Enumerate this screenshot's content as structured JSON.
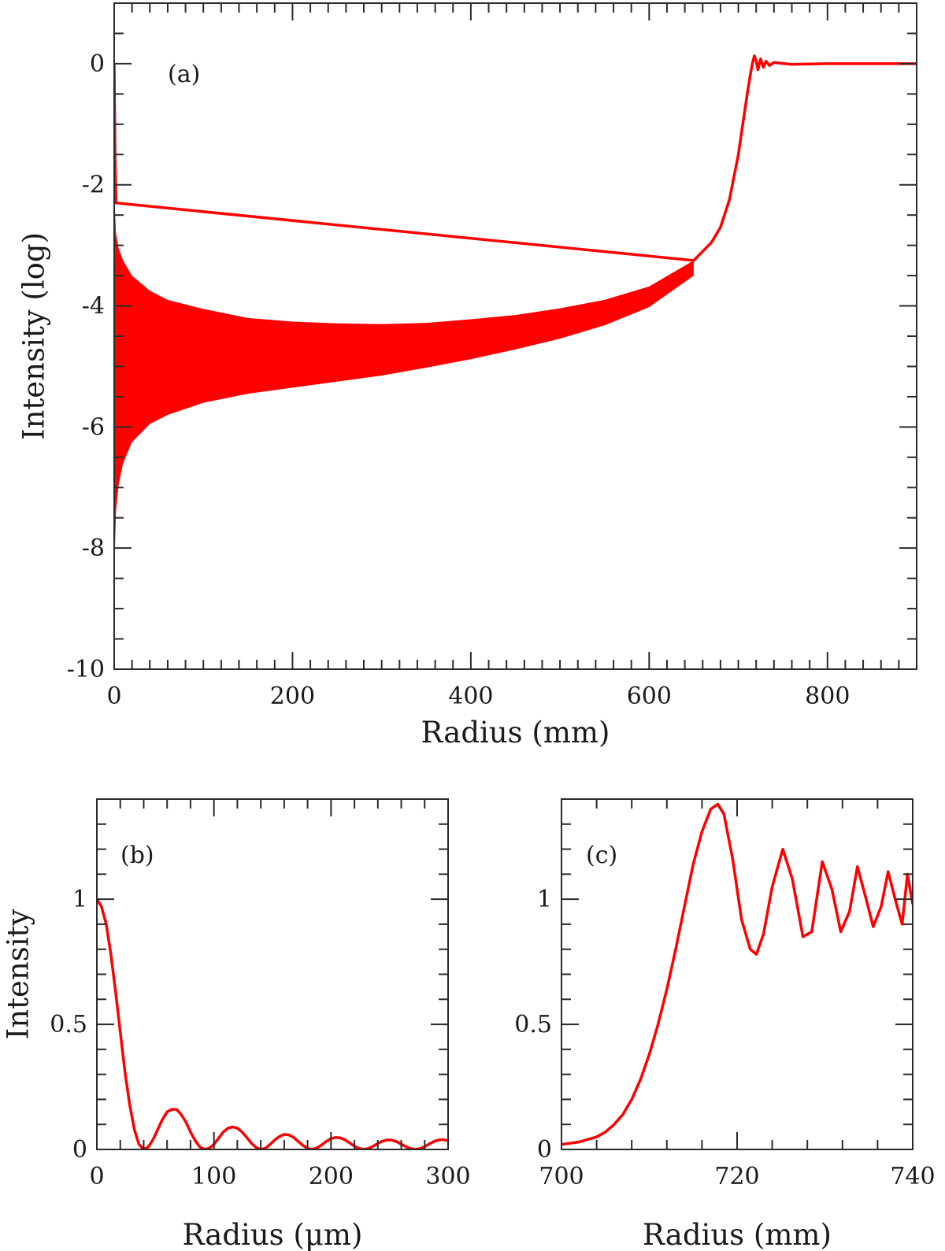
{
  "chart_data": [
    {
      "id": "a",
      "type": "line",
      "panel_label": "(a)",
      "xlabel": "Radius (mm)",
      "ylabel": "Intensity (log)",
      "xlim": [
        0,
        900
      ],
      "ylim": [
        -10,
        1
      ],
      "xticks": [
        0,
        200,
        400,
        600,
        800
      ],
      "yticks": [
        -10,
        -8,
        -6,
        -4,
        -2,
        0
      ],
      "xtick_labels": [
        "0",
        "200",
        "400",
        "600",
        "800"
      ],
      "ytick_labels": [
        "-10",
        "-8",
        "-6",
        "-4",
        "-2",
        "0"
      ],
      "series": [
        {
          "color": "#ff0000",
          "band_upper": {
            "x": [
              0.5,
              2,
              5,
              10,
              20,
              40,
              60,
              100,
              150,
              200,
              250,
              300,
              350,
              400,
              450,
              500,
              550,
              600,
              650
            ],
            "y": [
              -2.3,
              -2.8,
              -3.05,
              -3.25,
              -3.5,
              -3.75,
              -3.9,
              -4.05,
              -4.2,
              -4.26,
              -4.29,
              -4.3,
              -4.28,
              -4.22,
              -4.15,
              -4.04,
              -3.9,
              -3.68,
              -3.25
            ]
          },
          "band_lower": {
            "x": [
              0.5,
              2,
              5,
              10,
              20,
              40,
              60,
              100,
              150,
              200,
              250,
              300,
              350,
              400,
              450,
              500,
              550,
              600,
              650
            ],
            "y": [
              -8.2,
              -7.4,
              -6.95,
              -6.6,
              -6.25,
              -5.95,
              -5.8,
              -5.6,
              -5.45,
              -5.35,
              -5.25,
              -5.15,
              -5.02,
              -4.88,
              -4.72,
              -4.54,
              -4.32,
              -4.02,
              -3.5
            ]
          },
          "line": {
            "x": [
              0,
              1,
              2,
              650,
              670,
              680,
              690,
              700,
              705,
              710,
              713,
              716,
              718,
              720,
              722,
              725,
              728,
              731,
              735,
              740,
              760,
              800,
              850,
              900
            ],
            "y": [
              0,
              -1.5,
              -2.3,
              -3.25,
              -2.95,
              -2.7,
              -2.25,
              -1.5,
              -1.0,
              -0.5,
              -0.22,
              0.02,
              0.13,
              0.05,
              -0.1,
              0.08,
              -0.06,
              0.04,
              -0.03,
              0.02,
              -0.01,
              0.0,
              0.0,
              0.0
            ]
          }
        }
      ]
    },
    {
      "id": "b",
      "type": "line",
      "panel_label": "(b)",
      "xlabel": "Radius (μm)",
      "ylabel": "Intensity",
      "xlim": [
        0,
        300
      ],
      "ylim": [
        0,
        1.4
      ],
      "xticks": [
        0,
        100,
        200,
        300
      ],
      "yticks": [
        0,
        0.5,
        1
      ],
      "xtick_labels": [
        "0",
        "100",
        "200",
        "300"
      ],
      "ytick_labels": [
        "0",
        "0.5",
        "1"
      ],
      "series": [
        {
          "color": "#ff0000",
          "x": [
            0,
            4,
            8,
            12,
            16,
            20,
            24,
            28,
            32,
            36,
            40,
            44,
            48,
            52,
            56,
            60,
            64,
            68,
            72,
            76,
            80,
            84,
            88,
            92,
            96,
            100,
            104,
            108,
            112,
            116,
            120,
            124,
            128,
            132,
            136,
            140,
            144,
            148,
            152,
            156,
            160,
            164,
            168,
            172,
            176,
            180,
            184,
            188,
            192,
            196,
            200,
            204,
            208,
            212,
            216,
            220,
            224,
            228,
            232,
            236,
            240,
            244,
            248,
            252,
            256,
            260,
            264,
            268,
            272,
            276,
            280,
            284,
            288,
            292,
            296,
            300
          ],
          "y": [
            1.0,
            0.97,
            0.9,
            0.78,
            0.63,
            0.47,
            0.31,
            0.18,
            0.08,
            0.02,
            0.0,
            0.01,
            0.04,
            0.08,
            0.12,
            0.15,
            0.16,
            0.16,
            0.14,
            0.11,
            0.07,
            0.035,
            0.01,
            0.0,
            0.005,
            0.02,
            0.045,
            0.07,
            0.085,
            0.09,
            0.085,
            0.07,
            0.048,
            0.025,
            0.008,
            0.0,
            0.005,
            0.02,
            0.038,
            0.052,
            0.06,
            0.058,
            0.048,
            0.032,
            0.016,
            0.004,
            0.0,
            0.006,
            0.018,
            0.032,
            0.043,
            0.048,
            0.046,
            0.038,
            0.026,
            0.013,
            0.004,
            0.0,
            0.004,
            0.013,
            0.024,
            0.033,
            0.038,
            0.037,
            0.031,
            0.021,
            0.011,
            0.003,
            0.0,
            0.003,
            0.011,
            0.022,
            0.032,
            0.038,
            0.039,
            0.035
          ]
        }
      ]
    },
    {
      "id": "c",
      "type": "line",
      "panel_label": "(c)",
      "xlabel": "Radius (mm)",
      "ylabel": "",
      "xlim": [
        700,
        740
      ],
      "ylim": [
        0,
        1.4
      ],
      "xticks": [
        700,
        720,
        740
      ],
      "yticks": [
        0,
        0.5,
        1
      ],
      "xtick_labels": [
        "700",
        "720",
        "740"
      ],
      "ytick_labels": [
        "0",
        "0.5",
        "1"
      ],
      "series": [
        {
          "color": "#ff0000",
          "x": [
            700,
            702,
            704,
            705,
            706,
            707,
            708,
            709,
            710,
            711,
            712,
            713,
            714,
            715,
            716,
            717,
            717.8,
            718.5,
            719.5,
            720.5,
            721.5,
            722.2,
            723,
            724,
            725.2,
            726.3,
            727.5,
            728.5,
            729.7,
            730.8,
            731.8,
            732.8,
            733.7,
            734.7,
            735.5,
            736.4,
            737.2,
            738,
            738.8,
            739.4,
            740
          ],
          "y": [
            0.02,
            0.03,
            0.05,
            0.07,
            0.1,
            0.14,
            0.2,
            0.28,
            0.38,
            0.5,
            0.64,
            0.8,
            0.97,
            1.14,
            1.27,
            1.36,
            1.38,
            1.34,
            1.16,
            0.92,
            0.8,
            0.78,
            0.86,
            1.05,
            1.2,
            1.08,
            0.85,
            0.87,
            1.15,
            1.04,
            0.87,
            0.95,
            1.13,
            1.0,
            0.89,
            0.97,
            1.11,
            1.0,
            0.9,
            1.1,
            0.98
          ]
        }
      ]
    }
  ]
}
